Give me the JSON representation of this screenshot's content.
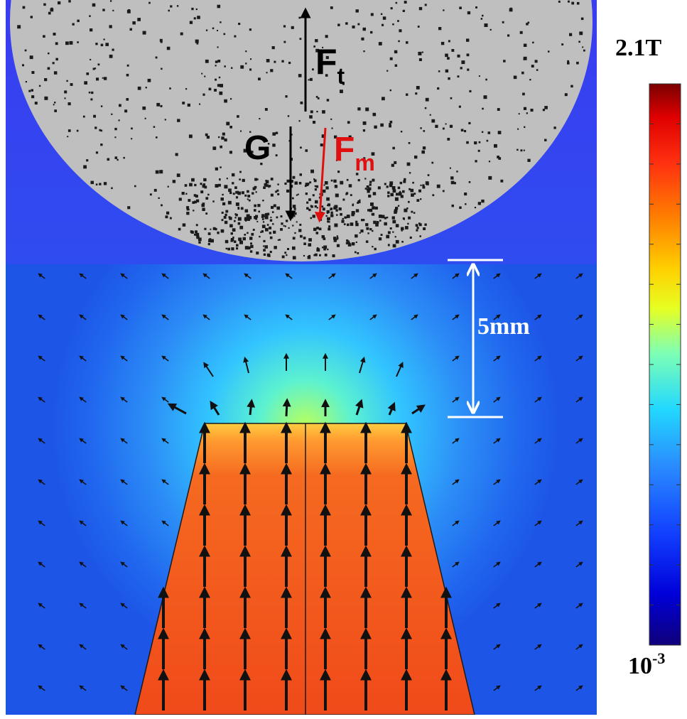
{
  "forces": {
    "ft": {
      "main": "F",
      "sub": "t"
    },
    "g": "G",
    "fm": {
      "main": "F",
      "sub": "m"
    }
  },
  "dimension": {
    "label": "5mm"
  },
  "colorbar": {
    "max_label": "2.1T",
    "min_label_base": "10",
    "min_label_exp": "-3"
  },
  "colors": {
    "background_field": "#1d4de0",
    "sphere": "#bfbfbf",
    "magnet": "#f2501c",
    "ft_arrow": "#000000",
    "g_arrow": "#000000",
    "fm_arrow": "#e01010",
    "dimension": "#ffffff"
  },
  "colormap": [
    "#10007a",
    "#0000d8",
    "#1240ff",
    "#2a8cff",
    "#22d8ff",
    "#7dffb5",
    "#e6ff22",
    "#ffd000",
    "#ff8000",
    "#ff3010",
    "#e00000",
    "#7a0000"
  ]
}
